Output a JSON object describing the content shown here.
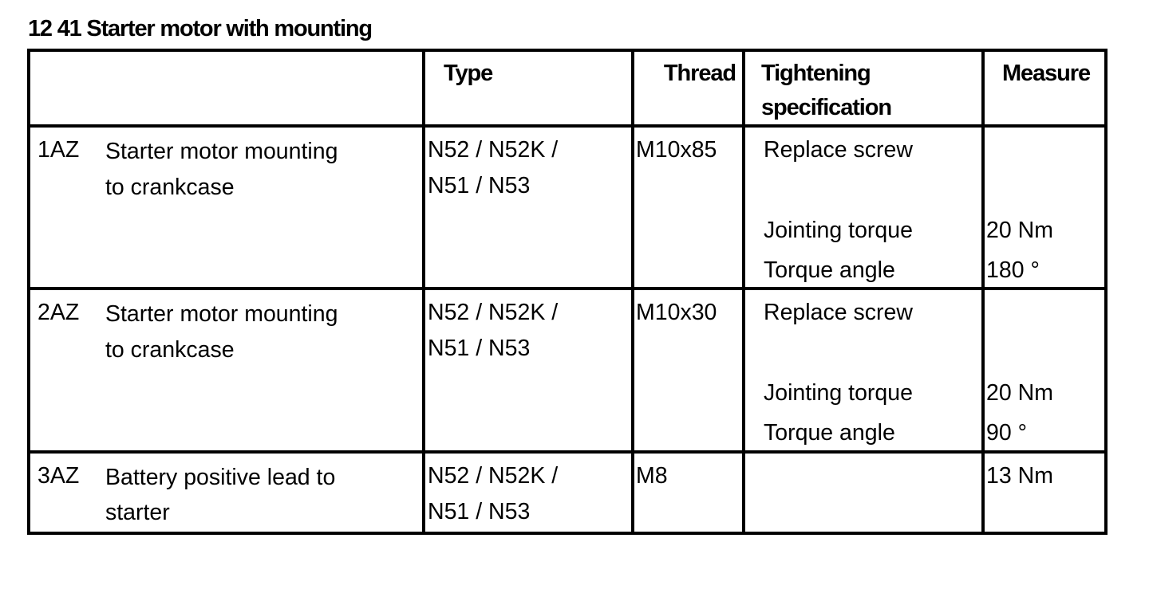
{
  "title": "12 41 Starter motor with mounting",
  "table": {
    "headers": {
      "type": "Type",
      "thread": "Thread",
      "spec_line1": "Tightening",
      "spec_line2": "specification",
      "measure": "Measure"
    },
    "rows": [
      {
        "id": "1AZ",
        "desc_line1": "Starter motor mounting",
        "desc_line2": "to crankcase",
        "type_line1": "N52 / N52K /",
        "type_line2": "N51 / N53",
        "thread": "M10x85",
        "spec": [
          "Replace screw",
          "Jointing torque",
          "Torque angle"
        ],
        "measure": [
          "20 Nm",
          "180 °"
        ]
      },
      {
        "id": "2AZ",
        "desc_line1": "Starter motor mounting",
        "desc_line2": "to crankcase",
        "type_line1": "N52 / N52K /",
        "type_line2": "N51 / N53",
        "thread": "M10x30",
        "spec": [
          "Replace screw",
          "Jointing torque",
          "Torque angle"
        ],
        "measure": [
          "20 Nm",
          "90 °"
        ]
      },
      {
        "id": "3AZ",
        "desc_line1": "Battery positive lead to",
        "desc_line2": "starter",
        "type_line1": "N52 / N52K /",
        "type_line2": "N51 / N53",
        "thread": "M8",
        "measure": [
          "13 Nm"
        ]
      }
    ]
  }
}
